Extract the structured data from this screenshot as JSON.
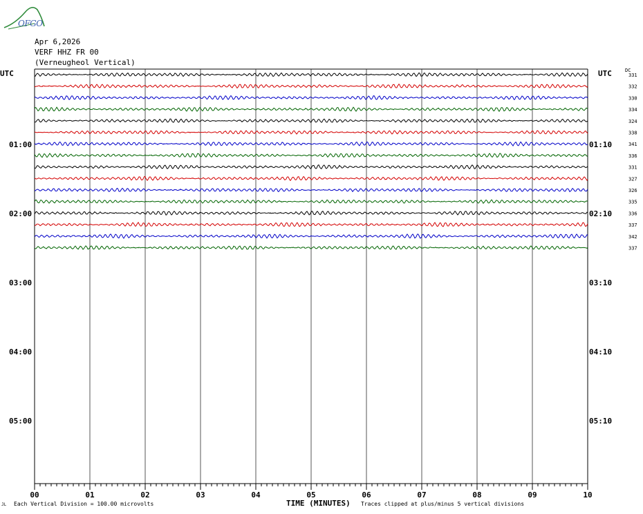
{
  "header": {
    "logo_text": "OFGO",
    "date": "Apr 6,2026",
    "station": "VERF HHZ FR 00",
    "location": "(Verneugheol Vertical)"
  },
  "axis": {
    "left_title": "UTC",
    "right_title": "UTC",
    "dc_title": "DC",
    "xlabel": "TIME (MINUTES)",
    "x_ticks": [
      "00",
      "01",
      "02",
      "03",
      "04",
      "05",
      "06",
      "07",
      "08",
      "09",
      "10"
    ],
    "left_hour_labels": [
      "01:00",
      "02:00",
      "03:00",
      "04:00",
      "05:00"
    ],
    "right_hour_labels": [
      "01:10",
      "02:10",
      "03:10",
      "04:10",
      "05:10"
    ]
  },
  "footer": {
    "division_note": "Each Vertical Division =  100.00 microvolts",
    "clip_note": "Traces clipped at plus/minus 5 vertical divisions",
    "corner_mark": "JL"
  },
  "chart_data": {
    "type": "line",
    "title": "VERF HHZ FR 00",
    "xlabel": "TIME (MINUTES)",
    "ylabel": "UTC",
    "xlim": [
      0,
      10
    ],
    "minutes_per_line": 10,
    "trace_colors": [
      "#000000",
      "#d40000",
      "#0000c8",
      "#006400"
    ],
    "dc_offsets": [
      331,
      332,
      330,
      334,
      324,
      338,
      341,
      336,
      331,
      327,
      326,
      335,
      336,
      337,
      342,
      337
    ],
    "trace_count": 16,
    "grid": true
  }
}
